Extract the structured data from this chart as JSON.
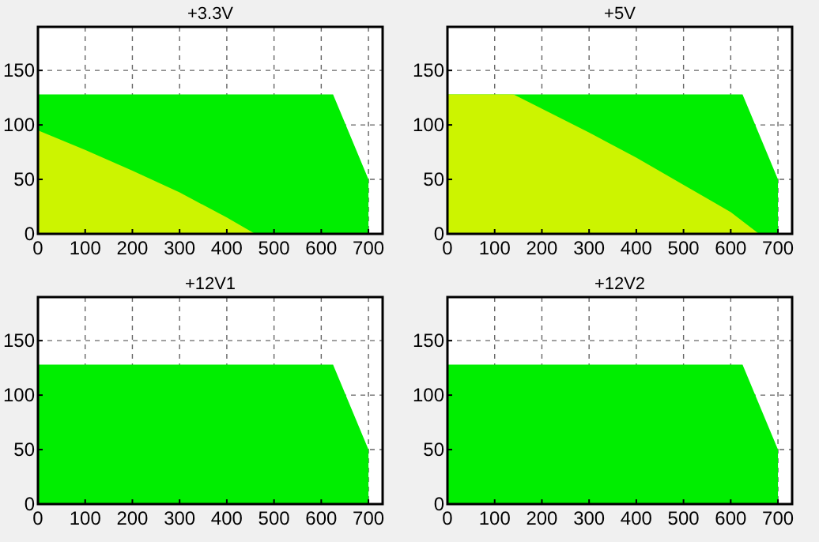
{
  "chart_data": [
    {
      "type": "area",
      "title": "+3.3V",
      "xlim": [
        0,
        730
      ],
      "ylim": [
        0,
        190
      ],
      "xticks": [
        0,
        100,
        200,
        300,
        400,
        500,
        600,
        700
      ],
      "yticks": [
        0,
        50,
        100,
        150
      ],
      "grid": true,
      "series": [
        {
          "color": "#00ee00",
          "x": [
            0,
            625,
            700,
            700
          ],
          "values": [
            128,
            128,
            50,
            0
          ]
        },
        {
          "color": "#ccf400",
          "x": [
            0,
            100,
            200,
            300,
            400,
            460
          ],
          "values": [
            95,
            77,
            58,
            38,
            15,
            0
          ]
        }
      ]
    },
    {
      "type": "area",
      "title": "+5V",
      "xlim": [
        0,
        730
      ],
      "ylim": [
        0,
        190
      ],
      "xticks": [
        0,
        100,
        200,
        300,
        400,
        500,
        600,
        700
      ],
      "yticks": [
        0,
        50,
        100,
        150
      ],
      "grid": true,
      "series": [
        {
          "color": "#00ee00",
          "x": [
            0,
            625,
            700,
            700
          ],
          "values": [
            128,
            128,
            50,
            0
          ]
        },
        {
          "color": "#ccf400",
          "x": [
            0,
            140,
            300,
            400,
            500,
            600,
            660
          ],
          "values": [
            128,
            128,
            93,
            70,
            45,
            20,
            0
          ]
        }
      ]
    },
    {
      "type": "area",
      "title": "+12V1",
      "xlim": [
        0,
        730
      ],
      "ylim": [
        0,
        190
      ],
      "xticks": [
        0,
        100,
        200,
        300,
        400,
        500,
        600,
        700
      ],
      "yticks": [
        0,
        50,
        100,
        150
      ],
      "grid": true,
      "series": [
        {
          "color": "#00ee00",
          "x": [
            0,
            625,
            700,
            700
          ],
          "values": [
            128,
            128,
            50,
            0
          ]
        }
      ]
    },
    {
      "type": "area",
      "title": "+12V2",
      "xlim": [
        0,
        730
      ],
      "ylim": [
        0,
        190
      ],
      "xticks": [
        0,
        100,
        200,
        300,
        400,
        500,
        600,
        700
      ],
      "yticks": [
        0,
        50,
        100,
        150
      ],
      "grid": true,
      "series": [
        {
          "color": "#00ee00",
          "x": [
            0,
            625,
            700,
            700
          ],
          "values": [
            128,
            128,
            50,
            0
          ]
        }
      ]
    }
  ]
}
